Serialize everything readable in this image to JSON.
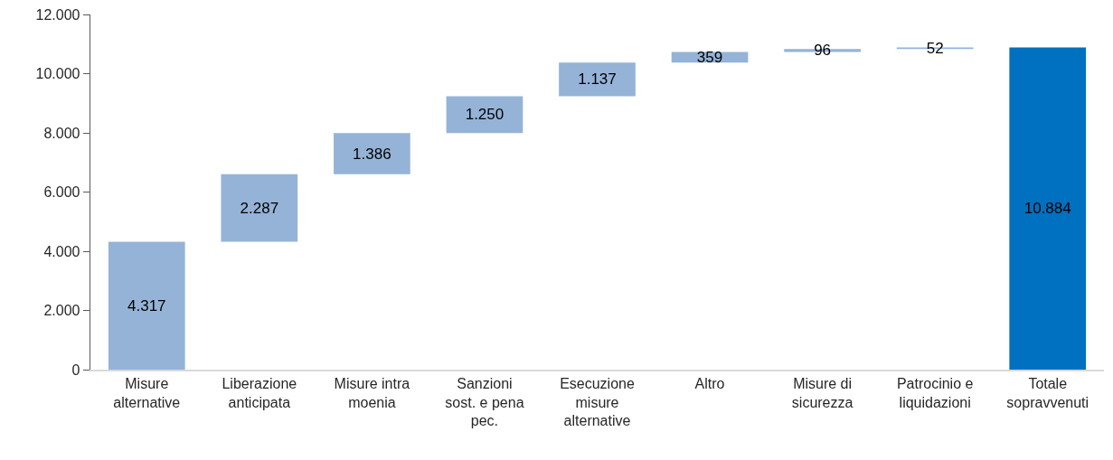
{
  "chart_data": {
    "type": "bar",
    "categories": [
      "Misure alternative",
      "Liberazione anticipata",
      "Misure intra moenia",
      "Sanzioni sost. e pena pec.",
      "Esecuzione misure alternative",
      "Altro",
      "Misure di sicurezza",
      "Patrocinio e liquidazioni",
      "Totale sopravvenuti"
    ],
    "values": [
      4317,
      2287,
      1386,
      1250,
      1137,
      359,
      96,
      52,
      10884
    ],
    "base": [
      0,
      4317,
      6604,
      7990,
      9240,
      10377,
      10736,
      10832,
      0
    ],
    "colors": [
      "#95b3d7",
      "#95b3d7",
      "#95b3d7",
      "#95b3d7",
      "#95b3d7",
      "#95b3d7",
      "#95b3d7",
      "#95b3d7",
      "#0070c0"
    ],
    "value_labels": [
      "4.317",
      "2.287",
      "1.386",
      "1.250",
      "1.137",
      "359",
      "96",
      "52",
      "10.884"
    ],
    "ylim": [
      0,
      12000
    ],
    "yticks": [
      0,
      {
        "value": 2000,
        "label": "2.000"
      },
      {
        "value": 4000,
        "label": "4.000"
      },
      {
        "value": 6000,
        "label": "6.000"
      },
      {
        "value": 8000,
        "label": "8.000"
      },
      {
        "value": 10000,
        "label": "10.000"
      },
      {
        "value": 12000,
        "label": "12.000"
      }
    ]
  }
}
